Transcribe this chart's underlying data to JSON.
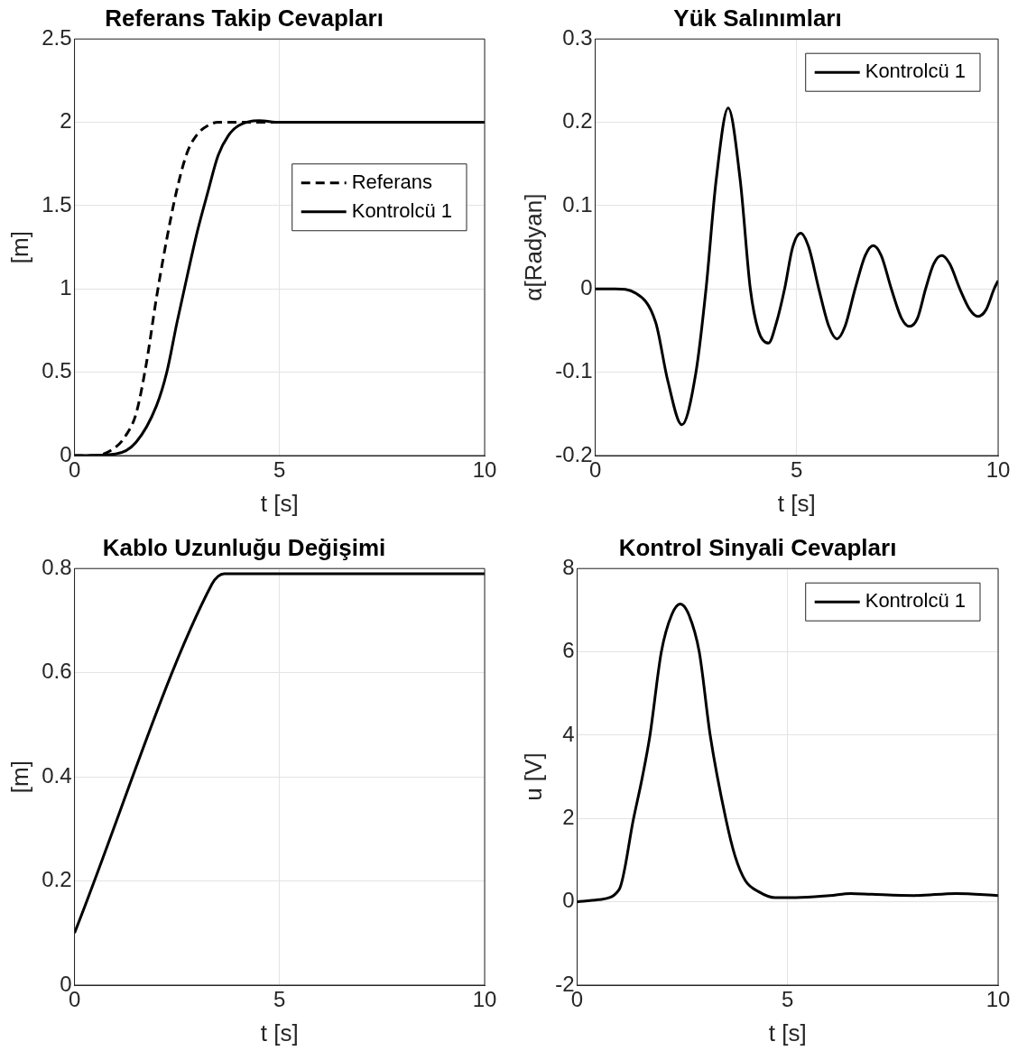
{
  "chart_data": [
    {
      "type": "line",
      "title": "Referans Takip Cevapları",
      "xlabel": "t [s]",
      "ylabel": "[m]",
      "xlim": [
        0,
        10
      ],
      "xticks": [
        0,
        5,
        10
      ],
      "ylim": [
        0,
        2.5
      ],
      "yticks": [
        0,
        0.5,
        1,
        1.5,
        2,
        2.5
      ],
      "grid": true,
      "legend": "right",
      "marker": "none",
      "series": [
        {
          "name": "Referans",
          "color": "#000000",
          "line_style": "dashed",
          "x": [
            0,
            0.5,
            1,
            1.25,
            1.5,
            1.75,
            2,
            2.25,
            2.5,
            2.75,
            3,
            3.25,
            3.5,
            4,
            10
          ],
          "values": [
            0,
            0,
            0.05,
            0.12,
            0.25,
            0.55,
            0.95,
            1.3,
            1.6,
            1.82,
            1.93,
            1.98,
            2,
            2,
            2
          ]
        },
        {
          "name": "Kontrolcü 1",
          "color": "#000000",
          "line_style": "solid",
          "x": [
            0,
            1,
            1.5,
            2,
            2.25,
            2.5,
            2.75,
            3,
            3.25,
            3.5,
            3.75,
            4,
            4.5,
            5,
            6,
            7,
            8,
            10
          ],
          "values": [
            0,
            0.01,
            0.08,
            0.3,
            0.5,
            0.8,
            1.08,
            1.35,
            1.58,
            1.8,
            1.92,
            1.98,
            2.01,
            2,
            2,
            2,
            2,
            2
          ]
        }
      ]
    },
    {
      "type": "line",
      "title": "Yük Salınımları",
      "xlabel": "t [s]",
      "ylabel": "α[Radyan]",
      "xlim": [
        0,
        10
      ],
      "xticks": [
        0,
        5,
        10
      ],
      "ylim": [
        -0.2,
        0.3
      ],
      "yticks": [
        -0.2,
        -0.1,
        0,
        0.1,
        0.2,
        0.3
      ],
      "grid": true,
      "legend": "top right",
      "marker": "none",
      "series": [
        {
          "name": "Kontrolcü 1",
          "color": "#000000",
          "line_style": "solid",
          "x": [
            0,
            0.5,
            1,
            1.5,
            1.8,
            2.15,
            2.5,
            2.75,
            3,
            3.3,
            3.6,
            3.85,
            4.05,
            4.3,
            4.5,
            4.7,
            4.9,
            5.1,
            5.3,
            5.55,
            5.8,
            6,
            6.2,
            6.45,
            6.7,
            6.9,
            7.1,
            7.35,
            7.6,
            7.8,
            8,
            8.2,
            8.4,
            8.6,
            8.8,
            9.05,
            9.3,
            9.5,
            9.7,
            9.9,
            10
          ],
          "values": [
            0,
            0,
            -0.005,
            -0.04,
            -0.11,
            -0.163,
            -0.1,
            0,
            0.13,
            0.217,
            0.13,
            0,
            -0.05,
            -0.065,
            -0.04,
            0,
            0.05,
            0.067,
            0.05,
            0,
            -0.045,
            -0.06,
            -0.045,
            0,
            0.04,
            0.052,
            0.04,
            0,
            -0.035,
            -0.045,
            -0.035,
            0,
            0.03,
            0.04,
            0.03,
            0,
            -0.025,
            -0.033,
            -0.025,
            0,
            0.01
          ]
        }
      ]
    },
    {
      "type": "line",
      "title": "Kablo Uzunluğu Değişimi",
      "xlabel": "t [s]",
      "ylabel": "[m]",
      "xlim": [
        0,
        10
      ],
      "xticks": [
        0,
        5,
        10
      ],
      "ylim": [
        0,
        0.8
      ],
      "yticks": [
        0,
        0.2,
        0.4,
        0.6,
        0.8
      ],
      "grid": true,
      "marker": "none",
      "series": [
        {
          "color": "#000000",
          "line_style": "solid",
          "x": [
            0,
            3.35,
            3.5,
            3.65,
            10
          ],
          "values": [
            0.1,
            0.77,
            0.785,
            0.79,
            0.79
          ]
        }
      ]
    },
    {
      "type": "line",
      "title": "Kontrol Sinyali Cevapları",
      "xlabel": "t [s]",
      "ylabel": "u [V]",
      "xlim": [
        0,
        10
      ],
      "xticks": [
        0,
        5,
        10
      ],
      "ylim": [
        -2,
        8
      ],
      "yticks": [
        -2,
        0,
        2,
        4,
        6,
        8
      ],
      "grid": true,
      "legend": "top right",
      "marker": "none",
      "series": [
        {
          "name": "Kontrolcü 1",
          "color": "#000000",
          "line_style": "solid",
          "x": [
            0,
            0.5,
            1,
            1.34,
            1.55,
            1.73,
            2,
            2.25,
            2.45,
            2.65,
            2.9,
            3.16,
            3.53,
            3.75,
            4,
            4.3,
            4.7,
            5.2,
            6,
            6.5,
            7,
            8,
            9,
            10
          ],
          "values": [
            0,
            0.05,
            0.3,
            2,
            3,
            4,
            6,
            6.9,
            7.15,
            6.9,
            6,
            4,
            2,
            1.1,
            0.5,
            0.25,
            0.1,
            0.1,
            0.15,
            0.2,
            0.18,
            0.15,
            0.2,
            0.15
          ]
        }
      ]
    }
  ]
}
